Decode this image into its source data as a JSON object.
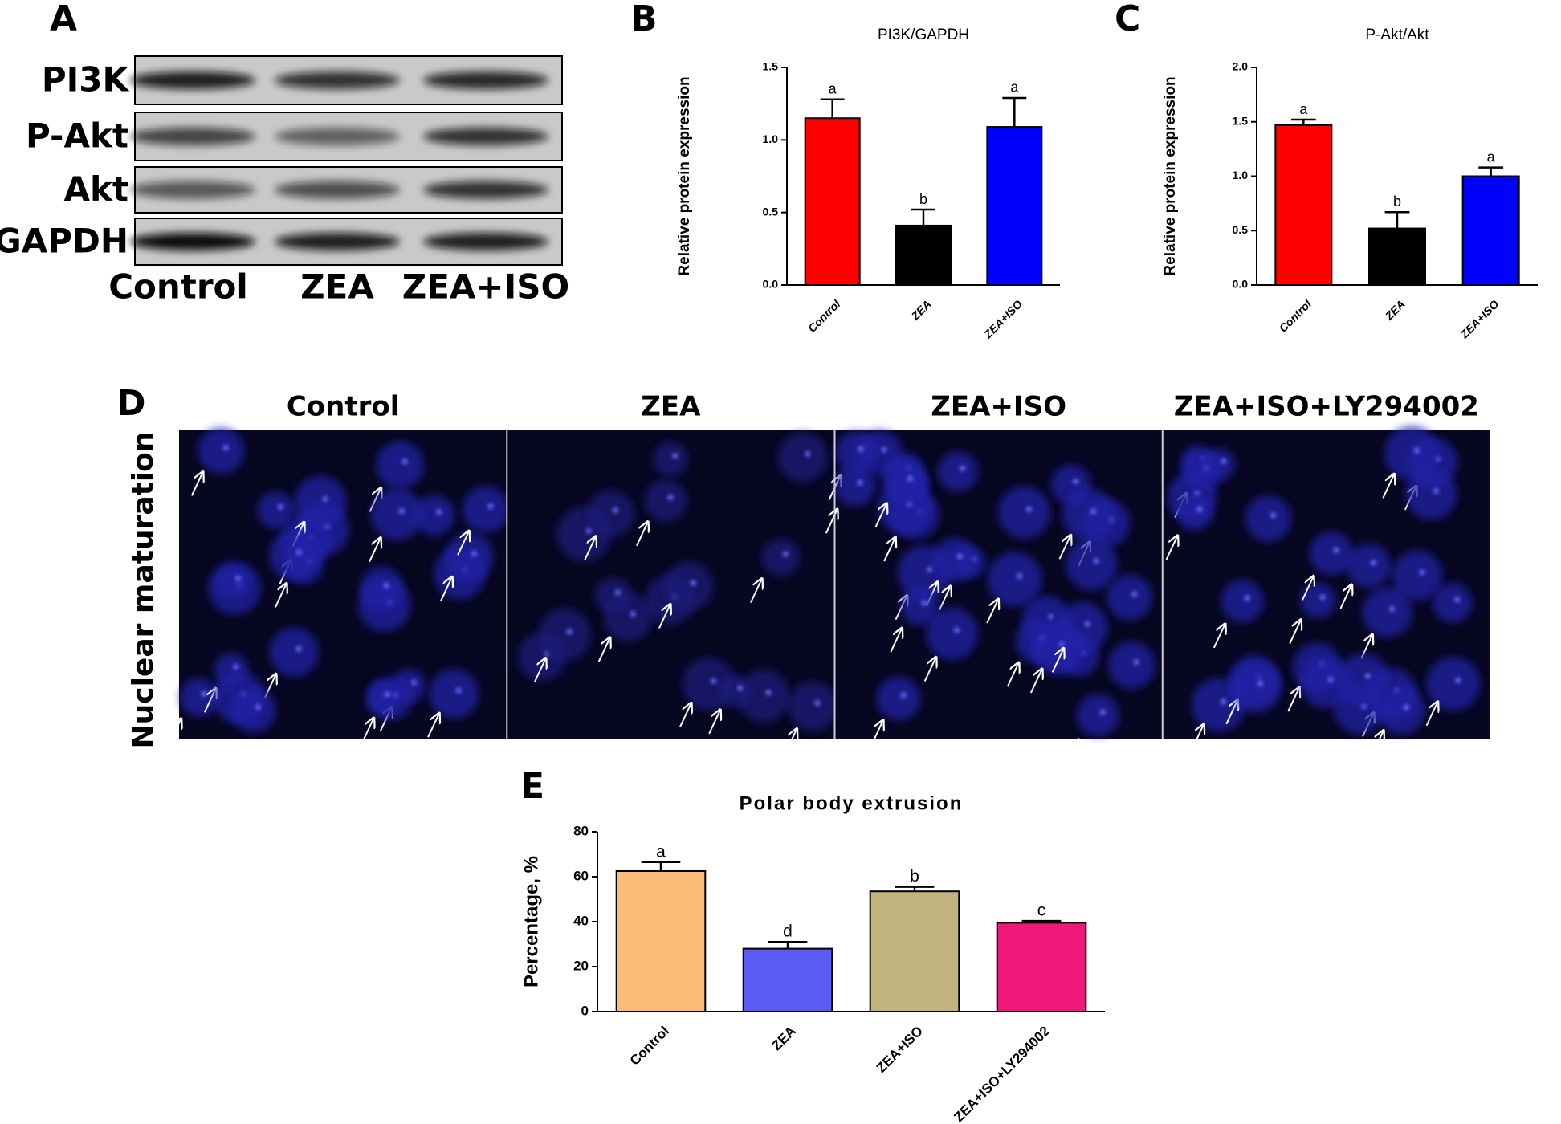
{
  "blot": {
    "panel": "A",
    "rows": [
      "PI3K",
      "P-Akt",
      "Akt",
      "GAPDH"
    ],
    "lanes": [
      "Control",
      "ZEA",
      "ZEA+ISO"
    ]
  },
  "micrograph": {
    "panel": "D",
    "row_label": "Nuclear maturation",
    "columns": [
      "Control",
      "ZEA",
      "ZEA+ISO",
      "ZEA+ISO+LY294002"
    ]
  },
  "chart_data": [
    {
      "type": "bar",
      "panel": "B",
      "title": "PI3K/GAPDH",
      "y_label": "Relative protein expression",
      "categories": [
        "Control",
        "ZEA",
        "ZEA+ISO"
      ],
      "values": [
        1.15,
        0.41,
        1.09
      ],
      "errors": [
        0.13,
        0.11,
        0.2
      ],
      "annotations": [
        "a",
        "b",
        "a"
      ],
      "colors": [
        "#ff0000",
        "#000000",
        "#0000ff"
      ],
      "ylim": [
        0,
        1.5
      ],
      "yticks": [
        {
          "value": 0,
          "label": "0.0"
        },
        0.5,
        {
          "value": 1,
          "label": "1.0"
        },
        1.5
      ]
    },
    {
      "type": "bar",
      "panel": "C",
      "title": "P-Akt/Akt",
      "y_label": "Relative protein expression",
      "categories": [
        "Control",
        "ZEA",
        "ZEA+ISO"
      ],
      "values": [
        1.47,
        0.52,
        1.0
      ],
      "errors": [
        0.05,
        0.15,
        0.08
      ],
      "annotations": [
        "a",
        "b",
        "a"
      ],
      "colors": [
        "#ff0000",
        "#000000",
        "#0000ff"
      ],
      "ylim": [
        0,
        2
      ],
      "yticks": [
        {
          "value": 0,
          "label": "0.0"
        },
        0.5,
        {
          "value": 1,
          "label": "1.0"
        },
        1.5,
        {
          "value": 2,
          "label": "2.0"
        }
      ]
    },
    {
      "type": "bar",
      "panel": "E",
      "title": "Polar body extrusion",
      "y_label": "Percentage, %",
      "categories": [
        "Control",
        "ZEA",
        "ZEA+ISO",
        "ZEA+ISO+LY294002"
      ],
      "values": [
        62.5,
        28,
        53.5,
        39.5
      ],
      "errors": [
        4,
        3,
        2,
        0.8
      ],
      "annotations": [
        "a",
        "d",
        "b",
        "c"
      ],
      "colors": [
        "#fdbb7a",
        "#5a5af5",
        "#c2b47e",
        "#f0197a"
      ],
      "ylim": [
        0,
        80
      ],
      "yticks": [
        0,
        20,
        40,
        60,
        80
      ]
    }
  ]
}
